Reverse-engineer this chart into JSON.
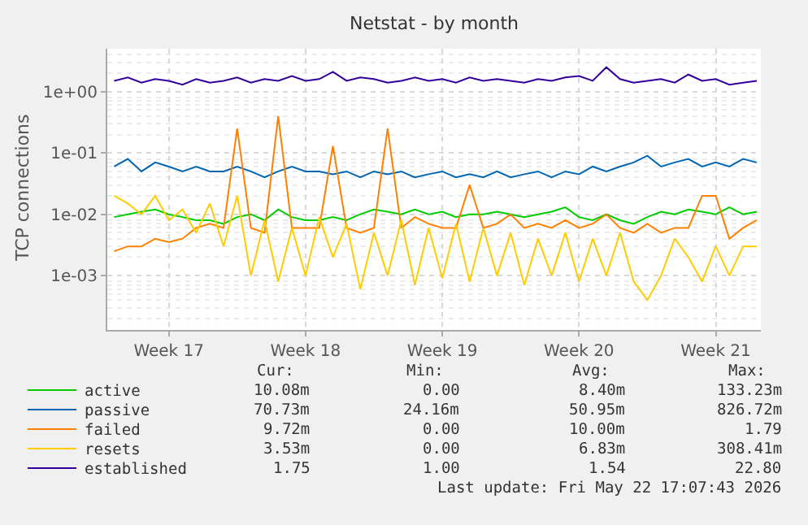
{
  "chart_data": {
    "type": "line",
    "title": "Netstat - by month",
    "ylabel": "TCP connections",
    "categories": [
      null,
      null,
      null,
      null,
      "Week 17",
      null,
      null,
      null,
      null,
      null,
      null,
      null,
      null,
      null,
      "Week 18",
      null,
      null,
      null,
      null,
      null,
      null,
      null,
      null,
      null,
      "Week 19",
      null,
      null,
      null,
      null,
      null,
      null,
      null,
      null,
      null,
      "Week 20",
      null,
      null,
      null,
      null,
      null,
      null,
      null,
      null,
      null,
      "Week 21",
      null,
      null,
      null
    ],
    "series": [
      {
        "name": "active",
        "color": "#00cc00",
        "values": [
          0.009,
          0.01,
          0.011,
          0.012,
          0.01,
          0.009,
          0.008,
          0.008,
          0.007,
          0.009,
          0.01,
          0.008,
          0.012,
          0.009,
          0.008,
          0.008,
          0.009,
          0.008,
          0.01,
          0.012,
          0.011,
          0.01,
          0.012,
          0.01,
          0.011,
          0.009,
          0.01,
          0.01,
          0.011,
          0.01,
          0.009,
          0.01,
          0.011,
          0.013,
          0.009,
          0.008,
          0.01,
          0.008,
          0.007,
          0.009,
          0.011,
          0.01,
          0.012,
          0.011,
          0.01,
          0.013,
          0.01,
          0.011
        ]
      },
      {
        "name": "passive",
        "color": "#0066b3",
        "values": [
          0.06,
          0.08,
          0.05,
          0.07,
          0.06,
          0.05,
          0.06,
          0.05,
          0.05,
          0.06,
          0.05,
          0.04,
          0.05,
          0.06,
          0.05,
          0.05,
          0.045,
          0.05,
          0.04,
          0.05,
          0.045,
          0.05,
          0.04,
          0.045,
          0.05,
          0.04,
          0.045,
          0.04,
          0.05,
          0.04,
          0.045,
          0.05,
          0.04,
          0.05,
          0.045,
          0.06,
          0.05,
          0.06,
          0.07,
          0.09,
          0.06,
          0.07,
          0.08,
          0.06,
          0.07,
          0.06,
          0.08,
          0.07
        ]
      },
      {
        "name": "failed",
        "color": "#ff8000",
        "values": [
          0.0025,
          0.003,
          0.003,
          0.004,
          0.0035,
          0.004,
          0.006,
          0.007,
          0.006,
          0.25,
          0.006,
          0.005,
          0.4,
          0.006,
          0.006,
          0.006,
          0.13,
          0.006,
          0.005,
          0.006,
          0.25,
          0.006,
          0.009,
          0.007,
          0.006,
          0.006,
          0.03,
          0.006,
          0.007,
          0.01,
          0.006,
          0.007,
          0.006,
          0.008,
          0.006,
          0.007,
          0.01,
          0.006,
          0.005,
          0.007,
          0.005,
          0.006,
          0.006,
          0.02,
          0.02,
          0.004,
          0.006,
          0.008
        ]
      },
      {
        "name": "resets",
        "color": "#ffcc00",
        "values": [
          0.02,
          0.015,
          0.01,
          0.02,
          0.008,
          0.012,
          0.005,
          0.015,
          0.003,
          0.02,
          0.001,
          0.008,
          0.0008,
          0.006,
          0.001,
          0.009,
          0.002,
          0.007,
          0.0006,
          0.005,
          0.001,
          0.008,
          0.0007,
          0.006,
          0.0009,
          0.007,
          0.0008,
          0.006,
          0.001,
          0.005,
          0.0007,
          0.004,
          0.001,
          0.005,
          0.0008,
          0.004,
          0.001,
          0.005,
          0.0008,
          0.0004,
          0.001,
          0.004,
          0.002,
          0.0008,
          0.003,
          0.001,
          0.003,
          0.003
        ]
      },
      {
        "name": "established",
        "color": "#330099",
        "values": [
          1.5,
          1.7,
          1.4,
          1.6,
          1.5,
          1.3,
          1.6,
          1.4,
          1.5,
          1.7,
          1.4,
          1.6,
          1.5,
          1.8,
          1.5,
          1.6,
          2.1,
          1.5,
          1.7,
          1.6,
          1.4,
          1.5,
          1.7,
          1.5,
          1.6,
          1.4,
          1.7,
          1.5,
          1.6,
          1.5,
          1.4,
          1.6,
          1.5,
          1.7,
          1.8,
          1.5,
          2.5,
          1.6,
          1.4,
          1.5,
          1.6,
          1.4,
          1.9,
          1.5,
          1.6,
          1.3,
          1.4,
          1.5
        ]
      }
    ],
    "log": "y",
    "ylim": [
      0.00013,
      5
    ],
    "yticks": [
      {
        "value": 0.001,
        "label": "1e-03"
      },
      {
        "value": 0.01,
        "label": "1e-02"
      },
      {
        "value": 0.1,
        "label": "1e-01"
      },
      {
        "value": 1,
        "label": "1e+00"
      }
    ],
    "grid": true,
    "legend": "bottom left",
    "marker": "none",
    "line_style": "solid",
    "annotations": [
      "Cur:",
      "Min:",
      "Avg:",
      "Max:",
      "10.08m",
      "0.00",
      "8.40m",
      "133.23m",
      "70.73m",
      "24.16m",
      "50.95m",
      "826.72m",
      "9.72m",
      "0.00",
      "10.00m",
      "1.79",
      "3.53m",
      "0.00",
      "6.83m",
      "308.41m",
      "1.75",
      "1.00",
      "1.54",
      "22.80",
      "Last update: Fri May 22 17:07:43 2026"
    ]
  }
}
